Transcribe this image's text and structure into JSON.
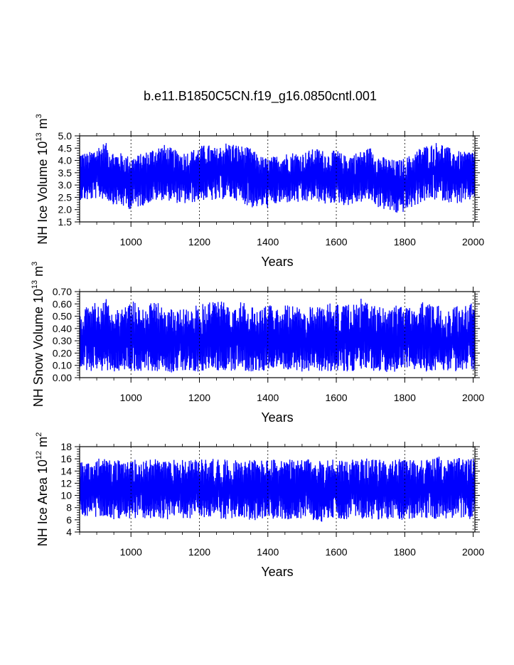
{
  "title": "b.e11.B1850C5CN.f19_g16.0850cntl.001",
  "chart_data": [
    {
      "type": "line",
      "id": "ice-volume",
      "ylabel": "NH Ice Volume 10",
      "ylabel_exp": "13",
      "ylabel_unit": "m",
      "ylabel_unit_exp": "3",
      "xlabel": "Years",
      "xlim": [
        850,
        2005
      ],
      "ylim": [
        1.5,
        5.0
      ],
      "x_ticks": [
        1000,
        1200,
        1400,
        1600,
        1800,
        2000
      ],
      "x_tick_labels": [
        "1000",
        "1200",
        "1400",
        "1600",
        "1800",
        "2000"
      ],
      "y_ticks": [
        1.5,
        2.0,
        2.5,
        3.0,
        3.5,
        4.0,
        4.5,
        5.0
      ],
      "y_tick_labels": [
        "1.5",
        "2.0",
        "2.5",
        "3.0",
        "3.5",
        "4.0",
        "4.5",
        "5.0"
      ],
      "line_color": "#0000ff",
      "series": [
        {
          "name": "NH Ice Volume",
          "x": [
            850,
            875,
            900,
            925,
            950,
            975,
            1000,
            1025,
            1050,
            1075,
            1100,
            1125,
            1150,
            1175,
            1200,
            1225,
            1250,
            1275,
            1300,
            1325,
            1350,
            1375,
            1400,
            1425,
            1450,
            1475,
            1500,
            1525,
            1550,
            1575,
            1600,
            1625,
            1650,
            1675,
            1700,
            1725,
            1750,
            1775,
            1800,
            1825,
            1850,
            1875,
            1900,
            1925,
            1950,
            1975,
            2005
          ],
          "mean": [
            3.35,
            3.3,
            3.45,
            3.5,
            3.3,
            3.25,
            3.2,
            3.3,
            3.35,
            3.45,
            3.5,
            3.4,
            3.3,
            3.35,
            3.45,
            3.5,
            3.4,
            3.6,
            3.55,
            3.45,
            3.55,
            3.2,
            3.15,
            3.25,
            3.3,
            3.35,
            3.3,
            3.4,
            3.45,
            3.3,
            3.35,
            3.25,
            3.3,
            3.4,
            3.45,
            3.2,
            3.1,
            3.0,
            3.05,
            3.2,
            3.45,
            3.5,
            3.6,
            3.45,
            3.35,
            3.3,
            3.4
          ],
          "max": [
            4.4,
            4.3,
            4.6,
            4.75,
            4.35,
            4.3,
            4.15,
            4.25,
            4.4,
            4.6,
            4.65,
            4.45,
            4.35,
            4.4,
            4.6,
            4.65,
            4.5,
            4.75,
            4.7,
            4.6,
            4.5,
            4.2,
            4.1,
            4.2,
            4.3,
            4.35,
            4.3,
            4.45,
            4.5,
            4.3,
            4.45,
            4.2,
            4.3,
            4.4,
            4.55,
            4.2,
            4.1,
            4.0,
            4.1,
            4.3,
            4.6,
            4.65,
            4.8,
            4.55,
            4.4,
            4.35,
            4.5
          ],
          "min": [
            2.4,
            2.35,
            2.45,
            2.4,
            2.2,
            2.1,
            2.0,
            2.1,
            2.25,
            2.35,
            2.4,
            2.3,
            2.2,
            2.25,
            2.35,
            2.4,
            2.3,
            2.45,
            2.4,
            2.3,
            2.05,
            2.1,
            2.05,
            2.2,
            2.25,
            2.3,
            2.2,
            2.35,
            2.3,
            2.15,
            2.3,
            2.15,
            2.2,
            2.3,
            2.35,
            2.05,
            1.95,
            1.8,
            1.9,
            2.1,
            2.3,
            2.35,
            2.4,
            2.3,
            2.25,
            2.2,
            2.5
          ]
        }
      ]
    },
    {
      "type": "line",
      "id": "snow-volume",
      "ylabel": "NH Snow Volume 10",
      "ylabel_exp": "13",
      "ylabel_unit": "m",
      "ylabel_unit_exp": "3",
      "xlabel": "Years",
      "xlim": [
        850,
        2005
      ],
      "ylim": [
        0.0,
        0.7
      ],
      "x_ticks": [
        1000,
        1200,
        1400,
        1600,
        1800,
        2000
      ],
      "x_tick_labels": [
        "1000",
        "1200",
        "1400",
        "1600",
        "1800",
        "2000"
      ],
      "y_ticks": [
        0.0,
        0.1,
        0.2,
        0.3,
        0.4,
        0.5,
        0.6,
        0.7
      ],
      "y_tick_labels": [
        "0.00",
        "0.10",
        "0.20",
        "0.30",
        "0.40",
        "0.50",
        "0.60",
        "0.70"
      ],
      "line_color": "#0000ff",
      "series": [
        {
          "name": "NH Snow Volume",
          "x": [
            850,
            875,
            900,
            925,
            950,
            975,
            1000,
            1025,
            1050,
            1075,
            1100,
            1125,
            1150,
            1175,
            1200,
            1225,
            1250,
            1275,
            1300,
            1325,
            1350,
            1375,
            1400,
            1425,
            1450,
            1475,
            1500,
            1525,
            1550,
            1575,
            1600,
            1625,
            1650,
            1675,
            1700,
            1725,
            1750,
            1775,
            1800,
            1825,
            1850,
            1875,
            1900,
            1925,
            1950,
            1975,
            2005
          ],
          "mean": [
            0.29,
            0.3,
            0.3,
            0.31,
            0.29,
            0.3,
            0.31,
            0.3,
            0.3,
            0.31,
            0.3,
            0.29,
            0.3,
            0.3,
            0.3,
            0.31,
            0.31,
            0.3,
            0.3,
            0.3,
            0.3,
            0.29,
            0.3,
            0.3,
            0.3,
            0.3,
            0.29,
            0.3,
            0.3,
            0.31,
            0.3,
            0.3,
            0.3,
            0.31,
            0.3,
            0.3,
            0.29,
            0.3,
            0.3,
            0.3,
            0.31,
            0.3,
            0.3,
            0.3,
            0.3,
            0.3,
            0.3
          ],
          "max": [
            0.55,
            0.58,
            0.62,
            0.65,
            0.56,
            0.58,
            0.64,
            0.59,
            0.6,
            0.62,
            0.58,
            0.55,
            0.6,
            0.57,
            0.6,
            0.63,
            0.68,
            0.6,
            0.6,
            0.62,
            0.58,
            0.56,
            0.6,
            0.58,
            0.6,
            0.59,
            0.55,
            0.58,
            0.59,
            0.64,
            0.6,
            0.59,
            0.6,
            0.65,
            0.59,
            0.58,
            0.56,
            0.6,
            0.6,
            0.58,
            0.63,
            0.6,
            0.6,
            0.58,
            0.6,
            0.58,
            0.62
          ],
          "min": [
            0.06,
            0.05,
            0.04,
            0.06,
            0.05,
            0.06,
            0.05,
            0.05,
            0.06,
            0.05,
            0.05,
            0.04,
            0.06,
            0.05,
            0.05,
            0.05,
            0.06,
            0.05,
            0.05,
            0.06,
            0.05,
            0.05,
            0.05,
            0.06,
            0.05,
            0.04,
            0.05,
            0.05,
            0.03,
            0.05,
            0.06,
            0.05,
            0.05,
            0.06,
            0.05,
            0.05,
            0.04,
            0.05,
            0.05,
            0.06,
            0.05,
            0.05,
            0.06,
            0.05,
            0.05,
            0.05,
            0.06
          ]
        }
      ]
    },
    {
      "type": "line",
      "id": "ice-area",
      "ylabel": "NH Ice Area 10",
      "ylabel_exp": "12",
      "ylabel_unit": "m",
      "ylabel_unit_exp": "2",
      "xlabel": "Years",
      "xlim": [
        850,
        2005
      ],
      "ylim": [
        4,
        18
      ],
      "x_ticks": [
        1000,
        1200,
        1400,
        1600,
        1800,
        2000
      ],
      "x_tick_labels": [
        "1000",
        "1200",
        "1400",
        "1600",
        "1800",
        "2000"
      ],
      "y_ticks": [
        4,
        6,
        8,
        10,
        12,
        14,
        16,
        18
      ],
      "y_tick_labels": [
        "4",
        "6",
        "8",
        "10",
        "12",
        "14",
        "16",
        "18"
      ],
      "line_color": "#0000ff",
      "series": [
        {
          "name": "NH Ice Area",
          "x": [
            850,
            875,
            900,
            925,
            950,
            975,
            1000,
            1025,
            1050,
            1075,
            1100,
            1125,
            1150,
            1175,
            1200,
            1225,
            1250,
            1275,
            1300,
            1325,
            1350,
            1375,
            1400,
            1425,
            1450,
            1475,
            1500,
            1525,
            1550,
            1575,
            1600,
            1625,
            1650,
            1675,
            1700,
            1725,
            1750,
            1775,
            1800,
            1825,
            1850,
            1875,
            1900,
            1925,
            1950,
            1975,
            2005
          ],
          "mean": [
            11,
            10.9,
            11,
            11.1,
            10.9,
            10.8,
            10.9,
            11,
            11,
            11.1,
            10.9,
            11,
            11,
            10.9,
            11,
            11,
            11.1,
            10.9,
            11,
            11,
            11,
            10.9,
            10.9,
            11,
            11,
            10.9,
            11,
            11,
            10.8,
            11,
            11,
            11,
            10.9,
            11,
            11,
            10.9,
            10.9,
            11,
            10.9,
            11,
            11,
            11,
            11.1,
            11,
            11,
            11,
            11
          ],
          "max": [
            15.9,
            15.8,
            16.0,
            16.2,
            15.8,
            15.7,
            15.9,
            15.8,
            16.0,
            16.1,
            15.8,
            15.9,
            16.2,
            15.8,
            15.9,
            16.0,
            16.1,
            15.9,
            16.0,
            15.9,
            16.0,
            15.8,
            15.9,
            16.0,
            16.0,
            15.8,
            16.0,
            15.9,
            15.7,
            16.0,
            16.1,
            16.0,
            15.9,
            16.1,
            16.0,
            15.9,
            15.8,
            16.0,
            15.9,
            16.0,
            16.1,
            16.0,
            16.4,
            16.0,
            16.2,
            16.0,
            16.1
          ],
          "min": [
            6.3,
            6.2,
            6.4,
            6.3,
            6.1,
            5.9,
            6.0,
            6.2,
            6.3,
            6.2,
            6.0,
            6.3,
            6.2,
            6.0,
            6.1,
            6.2,
            6.3,
            6.0,
            6.2,
            6.1,
            6.0,
            5.8,
            6.0,
            6.2,
            6.1,
            6.0,
            6.2,
            6.1,
            5.5,
            6.1,
            6.2,
            6.1,
            6.0,
            6.2,
            6.1,
            6.0,
            5.8,
            6.0,
            5.9,
            6.1,
            6.1,
            6.0,
            6.3,
            6.0,
            6.1,
            6.0,
            6.2
          ]
        }
      ]
    }
  ]
}
